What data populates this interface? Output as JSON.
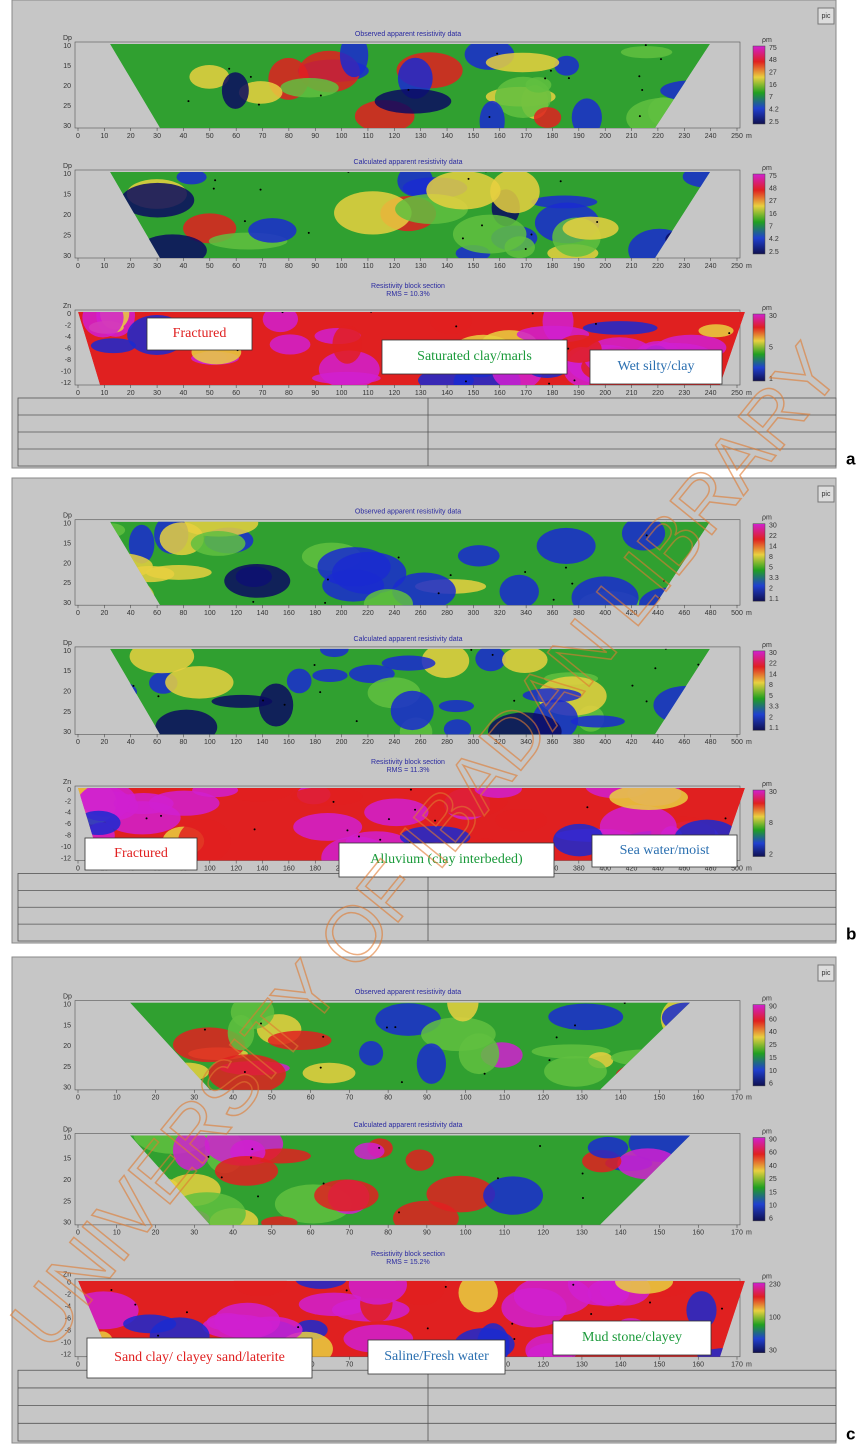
{
  "pic_button": "pic",
  "watermark": "UNIVERSITY OF IBADAN LIBRARY",
  "panels": [
    {
      "letter": "a",
      "sections": [
        {
          "title": "Observed apparent resistivity data",
          "depth_label": "Dp",
          "depth_ticks": [
            10,
            15,
            20,
            25,
            30
          ],
          "x_ticks": [
            0,
            10,
            20,
            30,
            40,
            50,
            60,
            70,
            80,
            90,
            100,
            110,
            120,
            130,
            140,
            150,
            160,
            170,
            180,
            190,
            200,
            210,
            220,
            230,
            240,
            250
          ],
          "x_unit": "m",
          "scale_unit": "ρm",
          "scale_ticks": [
            75,
            48,
            27,
            16,
            7,
            4.2,
            2.5
          ]
        },
        {
          "title": "Calculated apparent resistivity data",
          "depth_label": "Dp",
          "depth_ticks": [
            10,
            15,
            20,
            25,
            30
          ],
          "x_ticks": [
            0,
            10,
            20,
            30,
            40,
            50,
            60,
            70,
            80,
            90,
            100,
            110,
            120,
            130,
            140,
            150,
            160,
            170,
            180,
            190,
            200,
            210,
            220,
            230,
            240,
            250
          ],
          "x_unit": "m",
          "scale_unit": "ρm",
          "scale_ticks": [
            75,
            48,
            27,
            16,
            7,
            4.2,
            2.5
          ]
        },
        {
          "title": "Resistivity block section",
          "subtitle": "RMS = 10.3%",
          "depth_label": "Zn",
          "depth_ticks": [
            0,
            -2,
            -4,
            -6,
            -8,
            -10,
            -12
          ],
          "x_ticks": [
            0,
            10,
            20,
            30,
            40,
            50,
            60,
            70,
            80,
            90,
            100,
            110,
            120,
            130,
            140,
            150,
            160,
            170,
            180,
            190,
            200,
            210,
            220,
            230,
            240,
            250
          ],
          "x_unit": "m",
          "scale_unit": "ρm",
          "scale_ticks": [
            30,
            5,
            1
          ]
        }
      ],
      "annotations": [
        {
          "text": "Fractured",
          "color": "#e02020"
        },
        {
          "text": "Saturated clay/marls",
          "color": "#1a9a3a"
        },
        {
          "text": "Wet silty/clay",
          "color": "#2a6fb0"
        }
      ]
    },
    {
      "letter": "b",
      "sections": [
        {
          "title": "Observed apparent resistivity data",
          "depth_label": "Dp",
          "depth_ticks": [
            10,
            15,
            20,
            25,
            30
          ],
          "x_ticks": [
            0,
            20,
            40,
            60,
            80,
            100,
            120,
            140,
            160,
            180,
            200,
            220,
            240,
            260,
            280,
            300,
            320,
            340,
            360,
            380,
            400,
            420,
            440,
            460,
            480,
            500
          ],
          "x_unit": "m",
          "scale_unit": "ρm",
          "scale_ticks": [
            30,
            22,
            14,
            8,
            5,
            3.3,
            2.0,
            1.1
          ]
        },
        {
          "title": "Calculated apparent resistivity data",
          "depth_label": "Dp",
          "depth_ticks": [
            10,
            15,
            20,
            25,
            30
          ],
          "x_ticks": [
            0,
            20,
            40,
            60,
            80,
            100,
            120,
            140,
            160,
            180,
            200,
            220,
            240,
            260,
            280,
            300,
            320,
            340,
            360,
            380,
            400,
            420,
            440,
            460,
            480,
            500
          ],
          "x_unit": "m",
          "scale_unit": "ρm",
          "scale_ticks": [
            30,
            22,
            14,
            8,
            5,
            3.3,
            2.0,
            1.1
          ]
        },
        {
          "title": "Resistivity block section",
          "subtitle": "RMS = 11.3%",
          "depth_label": "Zn",
          "depth_ticks": [
            0,
            -2,
            -4,
            -6,
            -8,
            -10,
            -12
          ],
          "x_ticks": [
            0,
            20,
            40,
            60,
            80,
            100,
            120,
            140,
            160,
            180,
            200,
            220,
            240,
            260,
            280,
            300,
            320,
            340,
            360,
            380,
            400,
            420,
            440,
            460,
            480,
            500
          ],
          "x_unit": "m",
          "scale_unit": "ρm",
          "scale_ticks": [
            30,
            8,
            2
          ]
        }
      ],
      "annotations": [
        {
          "text": "Fractured",
          "color": "#e02020"
        },
        {
          "text": "Alluvium (clay interbeded)",
          "color": "#1a9a3a"
        },
        {
          "text": "Sea water/moist",
          "color": "#2a6fb0"
        }
      ]
    },
    {
      "letter": "c",
      "sections": [
        {
          "title": "Observed apparent resistivity data",
          "depth_label": "Dp",
          "depth_ticks": [
            10,
            15,
            20,
            25,
            30
          ],
          "x_ticks": [
            0,
            10,
            20,
            30,
            40,
            50,
            60,
            70,
            80,
            90,
            100,
            110,
            120,
            130,
            140,
            150,
            160,
            170
          ],
          "x_unit": "m",
          "scale_unit": "ρm",
          "scale_ticks": [
            90,
            60,
            40,
            25,
            15,
            10,
            6
          ]
        },
        {
          "title": "Calculated apparent resistivity data",
          "depth_label": "Dp",
          "depth_ticks": [
            10,
            15,
            20,
            25,
            30
          ],
          "x_ticks": [
            0,
            10,
            20,
            30,
            40,
            50,
            60,
            70,
            80,
            90,
            100,
            110,
            120,
            130,
            140,
            150,
            160,
            170
          ],
          "x_unit": "m",
          "scale_unit": "ρm",
          "scale_ticks": [
            90,
            60,
            40,
            25,
            15,
            10,
            6
          ]
        },
        {
          "title": "Resistivity block section",
          "subtitle": "RMS = 15.2%",
          "depth_label": "Zn",
          "depth_ticks": [
            0,
            -2,
            -4,
            -6,
            -8,
            -10,
            -12
          ],
          "x_ticks": [
            0,
            10,
            20,
            30,
            40,
            50,
            60,
            70,
            80,
            90,
            100,
            110,
            120,
            130,
            140,
            150,
            160,
            170
          ],
          "x_unit": "m",
          "scale_unit": "ρm",
          "scale_ticks": [
            230,
            100,
            30
          ]
        }
      ],
      "annotations": [
        {
          "text": "Sand clay/ clayey sand/laterite",
          "color": "#e02020"
        },
        {
          "text": "Saline/Fresh water",
          "color": "#2a6fb0"
        },
        {
          "text": "Mud stone/clayey",
          "color": "#1a9a3a"
        }
      ]
    }
  ]
}
